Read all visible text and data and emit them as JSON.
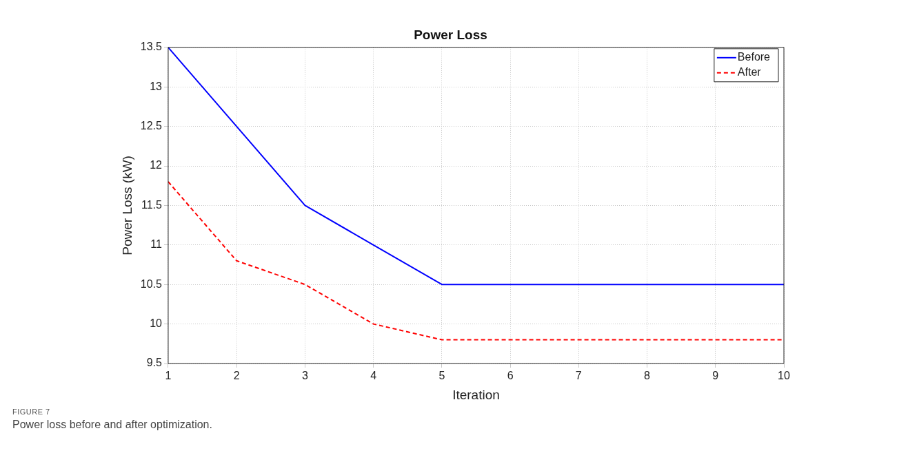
{
  "chart_data": {
    "type": "line",
    "title": "Power Loss",
    "xlabel": "Iteration",
    "ylabel": "Power Loss (kW)",
    "x": [
      1,
      2,
      3,
      4,
      5,
      6,
      7,
      8,
      9,
      10
    ],
    "series": [
      {
        "name": "Before",
        "color": "#0000ff",
        "line_style": "solid",
        "values": [
          13.5,
          12.5,
          11.5,
          11,
          10.5,
          10.5,
          10.5,
          10.5,
          10.5,
          10.5
        ]
      },
      {
        "name": "After",
        "color": "#ff0000",
        "line_style": "dashed",
        "values": [
          11.8,
          10.8,
          10.5,
          10,
          9.8,
          9.8,
          9.8,
          9.8,
          9.8,
          9.8
        ]
      }
    ],
    "xlim": [
      1,
      10
    ],
    "xticks": [
      1,
      2,
      3,
      4,
      5,
      6,
      7,
      8,
      9,
      10
    ],
    "ylim": [
      9.5,
      13.5
    ],
    "yticks": [
      9.5,
      10,
      10.5,
      11,
      11.5,
      12,
      12.5,
      13,
      13.5
    ],
    "grid": true,
    "legend": "top right",
    "marker": "none",
    "annotations": [
      "FIGURE 7",
      "Power loss before and after optimization."
    ]
  }
}
